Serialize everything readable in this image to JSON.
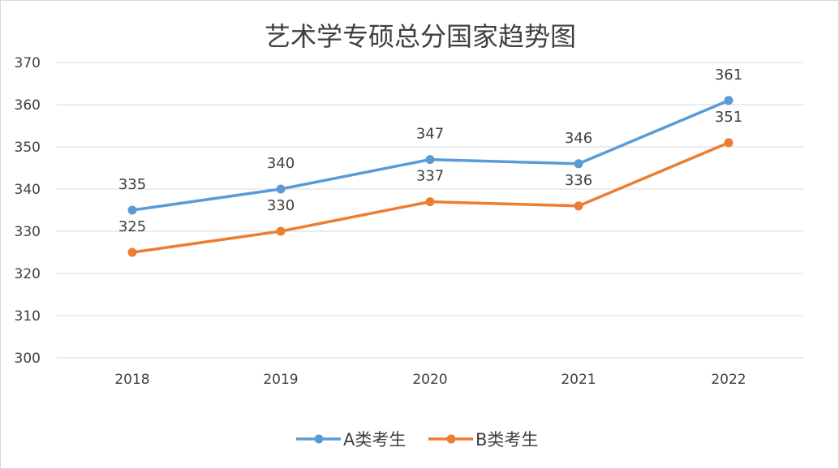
{
  "chart_data": {
    "type": "line",
    "title": "艺术学专硕总分国家趋势图",
    "xlabel": "",
    "ylabel": "",
    "categories": [
      "2018",
      "2019",
      "2020",
      "2021",
      "2022"
    ],
    "ylim": [
      300,
      370
    ],
    "yticks": [
      300,
      310,
      320,
      330,
      340,
      350,
      360,
      370
    ],
    "grid": true,
    "legend_position": "bottom",
    "series": [
      {
        "name": "A类考生",
        "color": "#5b9bd5",
        "values": [
          335,
          340,
          347,
          346,
          361
        ]
      },
      {
        "name": "B类考生",
        "color": "#ed7d31",
        "values": [
          325,
          330,
          337,
          336,
          351
        ]
      }
    ]
  }
}
